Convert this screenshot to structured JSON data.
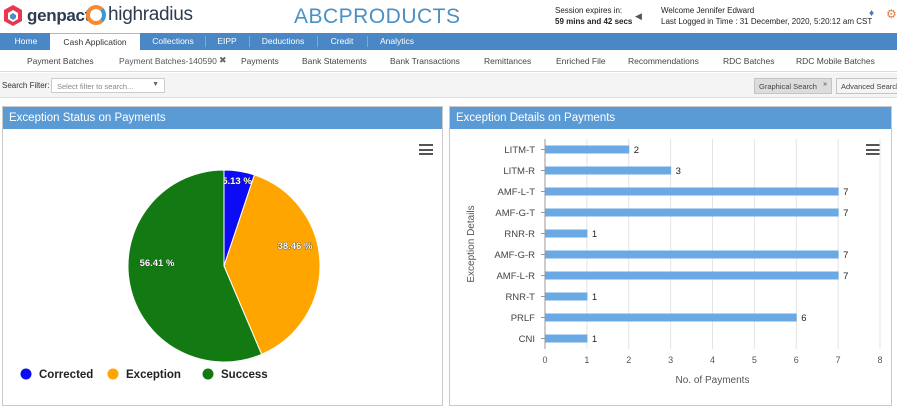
{
  "header": {
    "brand1": "genpact",
    "brand2": "highradius",
    "product": "ABCPRODUCTS",
    "session_label": "Session expires in:",
    "session_time": "59 mins and 42 secs",
    "welcome": "Welcome Jennifer Edward",
    "last_logged": "Last Logged in Time : 31 December, 2020, 5:20:12 am CST"
  },
  "main_nav": {
    "tabs": [
      {
        "label": "Home"
      },
      {
        "label": "Cash Application",
        "active": true
      },
      {
        "label": "Collections"
      },
      {
        "label": "EIPP"
      },
      {
        "label": "Deductions"
      },
      {
        "label": "Credit"
      },
      {
        "label": "Analytics"
      }
    ]
  },
  "sub_nav": {
    "tabs": [
      {
        "label": "Payment Batches"
      },
      {
        "label": "Payment Batches-140590",
        "active": true
      },
      {
        "label": "Payments"
      },
      {
        "label": "Bank Statements"
      },
      {
        "label": "Bank Transactions"
      },
      {
        "label": "Remittances"
      },
      {
        "label": "Enriched File"
      },
      {
        "label": "Recommendations"
      },
      {
        "label": "RDC Batches"
      },
      {
        "label": "RDC Mobile Batches"
      }
    ]
  },
  "filter": {
    "label": "Search Filter:",
    "placeholder": "Select filter to search...",
    "graphical_search": "Graphical Search",
    "advanced_search": "Advanced Search"
  },
  "left_panel": {
    "title": "Exception Status on Payments"
  },
  "right_panel": {
    "title": "Exception Details on Payments"
  },
  "colors": {
    "nav_blue": "#4b87c5",
    "panel_header": "#5b9bd5",
    "corrected": "#0b0bf5",
    "exception": "#ffa500",
    "success": "#137a13",
    "bar": "#6aa9e3"
  },
  "chart_data": [
    {
      "type": "pie",
      "title": "",
      "slices": [
        {
          "name": "Corrected",
          "value": 5.13,
          "label": "5.13 %",
          "color": "#0b0bf5"
        },
        {
          "name": "Exception",
          "value": 38.46,
          "label": "38.46 %",
          "color": "#ffa500"
        },
        {
          "name": "Success",
          "value": 56.41,
          "label": "56.41 %",
          "color": "#137a13"
        }
      ],
      "legend": [
        "Corrected",
        "Exception",
        "Success"
      ],
      "legend_position": "bottom"
    },
    {
      "type": "bar",
      "orientation": "horizontal",
      "title": "",
      "categories": [
        "LITM-T",
        "LITM-R",
        "AMF-L-T",
        "AMF-G-T",
        "RNR-R",
        "AMF-G-R",
        "AMF-L-R",
        "RNR-T",
        "PRLF",
        "CNI"
      ],
      "values": [
        2,
        3,
        7,
        7,
        1,
        7,
        7,
        1,
        6,
        1
      ],
      "xlabel": "No. of Payments",
      "ylabel": "Exception Details",
      "xlim": [
        0,
        8
      ],
      "xticks": [
        "0",
        "1",
        "2",
        "3",
        "4",
        "5",
        "6",
        "7",
        "8"
      ],
      "grid": true
    }
  ]
}
